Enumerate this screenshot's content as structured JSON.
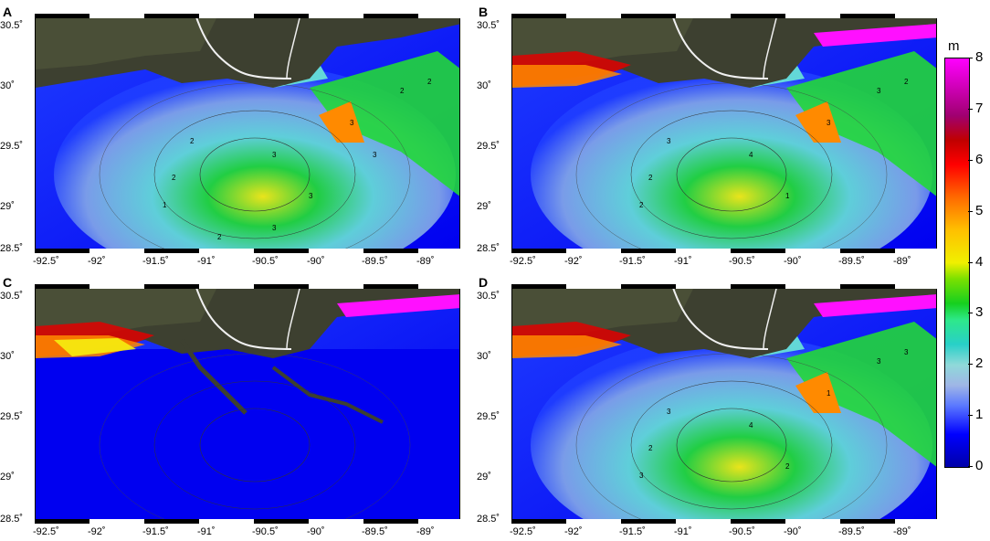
{
  "panels": [
    {
      "letter": "A",
      "scene": "a"
    },
    {
      "letter": "B",
      "scene": "b"
    },
    {
      "letter": "C",
      "scene": "c"
    },
    {
      "letter": "D",
      "scene": "d"
    }
  ],
  "lat_ticks": [
    "30.5˚",
    "30˚",
    "29.5˚",
    "29˚",
    "28.5˚"
  ],
  "lon_ticks": [
    "-92.5˚",
    "-92˚",
    "-91.5˚",
    "-91˚",
    "-90.5˚",
    "-90˚",
    "-89.5˚",
    "-89˚"
  ],
  "colorbar": {
    "unit": "m",
    "ticks": [
      "8",
      "7",
      "6",
      "5",
      "4",
      "3",
      "2",
      "1",
      "0"
    ],
    "range": [
      0,
      8
    ]
  },
  "contour_labels": {
    "a": [
      "3",
      "2",
      "1",
      "2",
      "3",
      "3",
      "2",
      "2",
      "3",
      "3",
      "2"
    ],
    "b": [
      "4",
      "3",
      "2",
      "2",
      "1",
      "3",
      "3",
      "2"
    ],
    "d": [
      "4",
      "3",
      "3",
      "2",
      "2",
      "1",
      "3",
      "3"
    ]
  },
  "colors": {
    "deep": "#0000f0",
    "low": "#1f3dff",
    "mid": "#7fa2e8",
    "cyan": "#63d8d8",
    "green": "#22d73a",
    "yellow": "#f5ef10",
    "orange": "#ff8a00",
    "red": "#e00000",
    "magenta": "#ff10ff",
    "land": "#3d4030",
    "land2": "#545a3c"
  }
}
